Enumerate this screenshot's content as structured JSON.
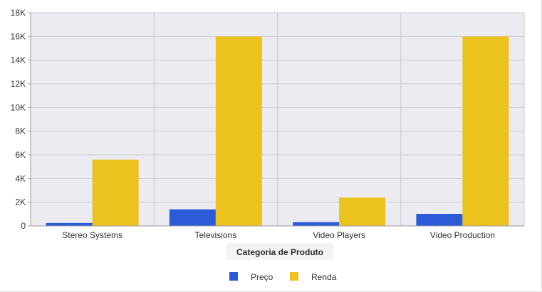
{
  "chart_data": {
    "type": "bar",
    "categories": [
      "Stereo Systems",
      "Televisions",
      "Video Players",
      "Video Production"
    ],
    "series": [
      {
        "name": "Preço",
        "color": "#2b5bd6",
        "values": [
          250,
          1400,
          320,
          1020
        ]
      },
      {
        "name": "Renda",
        "color": "#ebc21e",
        "values": [
          5600,
          16000,
          2400,
          16000
        ]
      }
    ],
    "xlabel": "Categoria de Produto",
    "ylabel": "",
    "ylim": [
      0,
      18000
    ],
    "yticks": [
      0,
      2000,
      4000,
      6000,
      8000,
      10000,
      12000,
      14000,
      16000,
      18000
    ],
    "ytick_labels": [
      "0",
      "2K",
      "4K",
      "6K",
      "8K",
      "10K",
      "12K",
      "14K",
      "16K",
      "18K"
    ],
    "grid": true,
    "legend": "bottom-center",
    "plot_background": "#ebebf1",
    "grid_color": "#c9c9d1"
  }
}
